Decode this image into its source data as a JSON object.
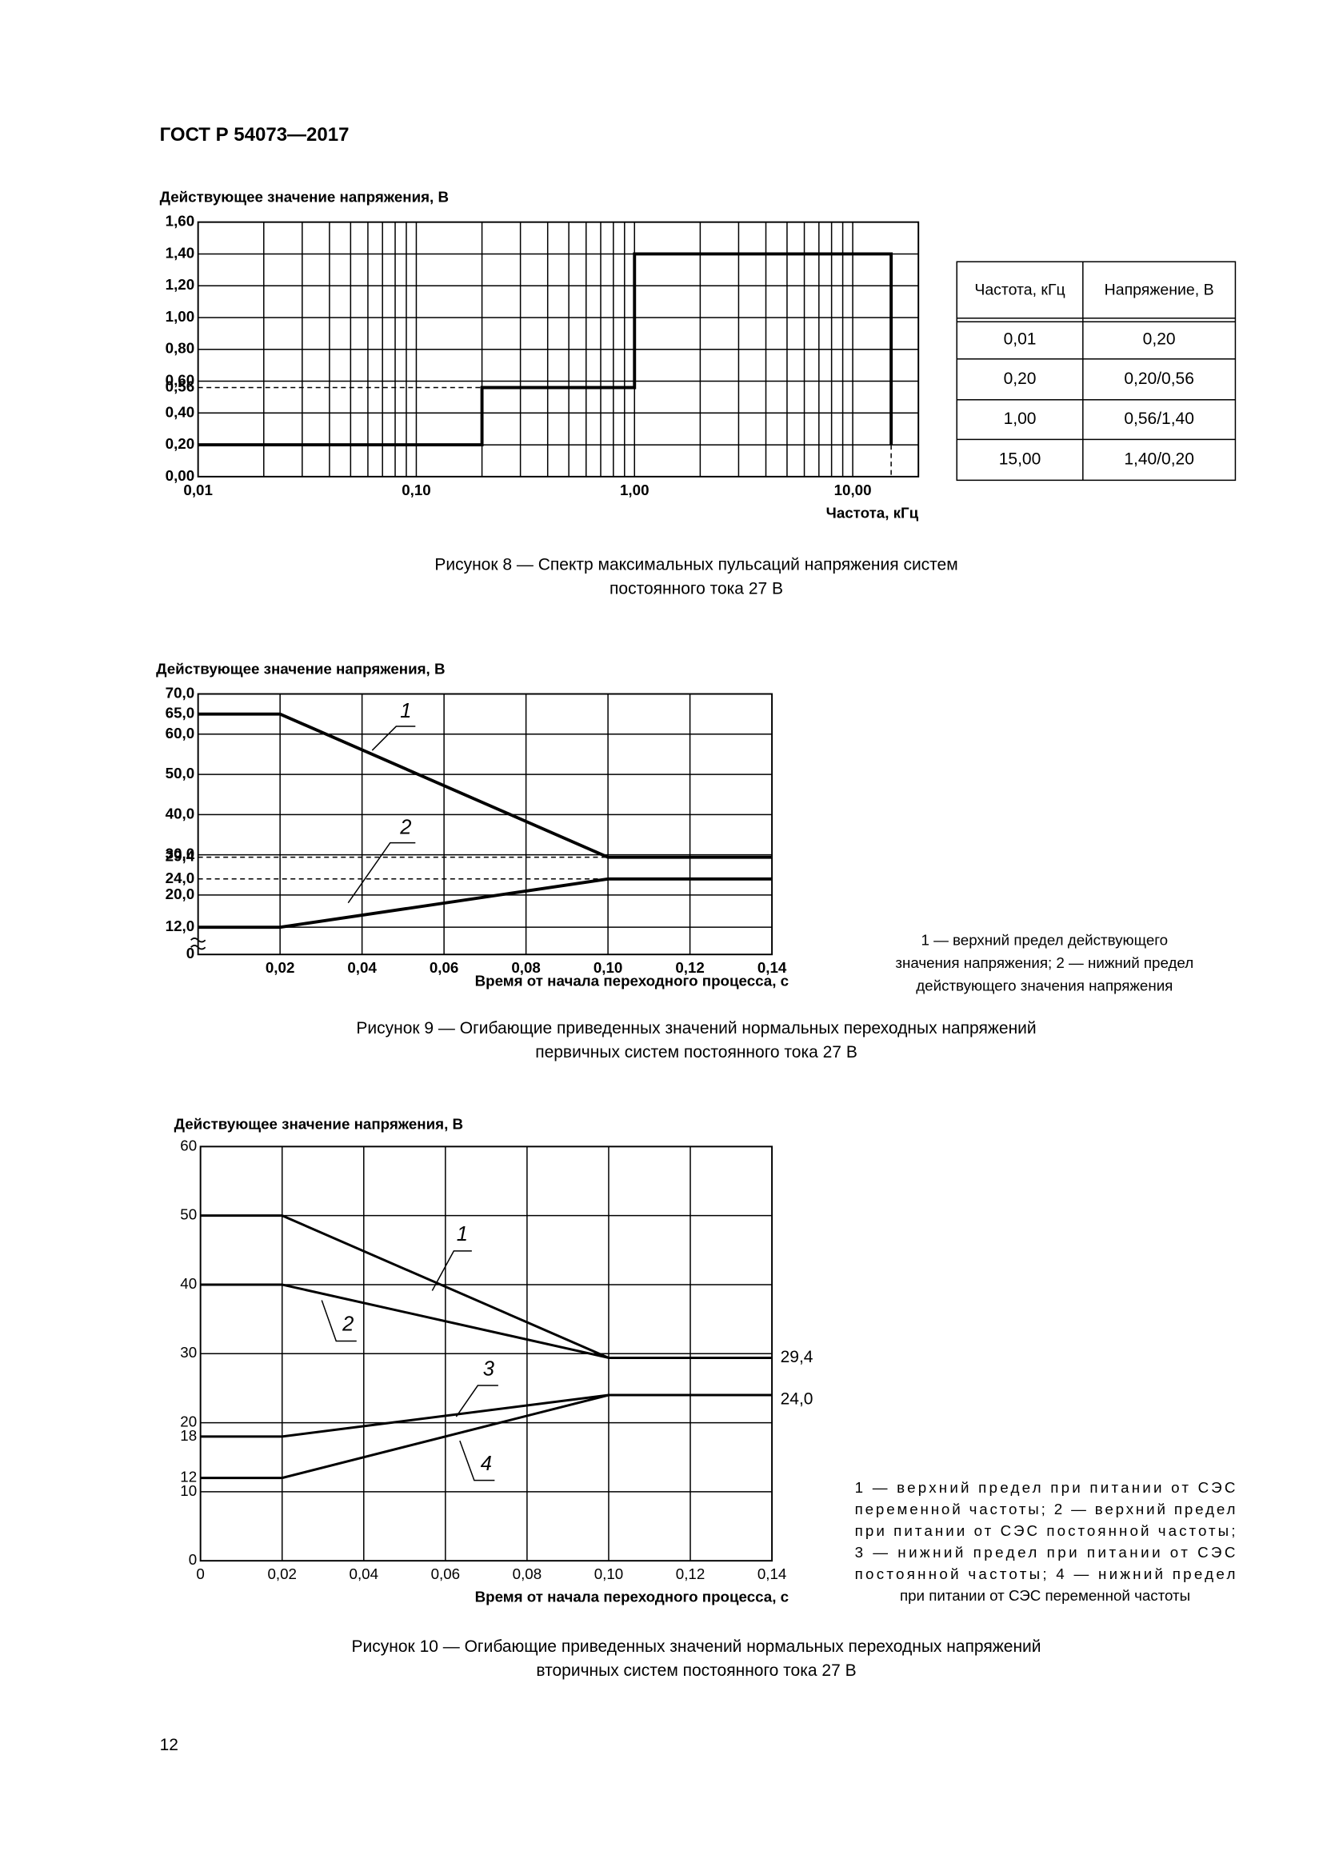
{
  "header": {
    "title": "ГОСТ Р 54073—2017"
  },
  "chart_data": [
    {
      "type": "line",
      "xscale": "log",
      "ylabel": "Действующее значение напряжения, В",
      "xlabel": "Частота, кГц",
      "caption": [
        "Рисунок 8 — Спектр максимальных пульсаций напряжения систем",
        "постоянного тока 27 В"
      ],
      "xlim": [
        0.01,
        20
      ],
      "ylim": [
        0,
        1.6
      ],
      "xticks": [
        {
          "value": 0.01,
          "label": "0,01"
        },
        {
          "value": 0.1,
          "label": "0,10"
        },
        {
          "value": 1,
          "label": "1,00"
        },
        {
          "value": 10,
          "label": "10,00"
        }
      ],
      "yticks": [
        {
          "value": 0,
          "label": "0,00"
        },
        {
          "value": 0.2,
          "label": "0,20"
        },
        {
          "value": 0.4,
          "label": "0,40"
        },
        {
          "value": 0.56,
          "label": "0,56"
        },
        {
          "value": 0.6,
          "label": "0,60"
        },
        {
          "value": 0.8,
          "label": "0,80"
        },
        {
          "value": 1,
          "label": "1,00"
        },
        {
          "value": 1.2,
          "label": "1,20"
        },
        {
          "value": 1.4,
          "label": "1,40"
        },
        {
          "value": 1.6,
          "label": "1,60"
        }
      ],
      "xgrid": [
        0.02,
        0.03,
        0.04,
        0.05,
        0.06,
        0.07,
        0.08,
        0.09,
        0.1,
        0.2,
        0.3,
        0.4,
        0.5,
        0.6,
        0.7,
        0.8,
        0.9,
        1,
        2,
        3,
        4,
        5,
        6,
        7,
        8,
        9,
        10,
        20
      ],
      "ygrid": [
        0.2,
        0.4,
        0.6,
        0.8,
        1,
        1.2,
        1.4
      ],
      "x": [
        0.01,
        0.2,
        0.2,
        1,
        1,
        15,
        15
      ],
      "series": [
        {
          "color": "#000000",
          "values": [
            0.2,
            0.2,
            0.56,
            0.56,
            1.4,
            1.4,
            0.2
          ]
        }
      ],
      "reference_lines": [
        {
          "x": [
            0.01,
            0.2
          ],
          "y": [
            0.56,
            0.56
          ]
        },
        {
          "x": [
            15,
            15
          ],
          "y": [
            0.2,
            0
          ]
        }
      ]
    },
    {
      "type": "line",
      "axis_break": [
        0,
        10
      ],
      "ylabel": "Действующее значение напряжения, В",
      "xlabel": "Время от начала переходного процесса, с",
      "caption": [
        "Рисунок 9 — Огибающие приведенных значений нормальных переходных напряжений",
        "первичных систем постоянного тока 27 В"
      ],
      "note": [
        "1 — верхний предел действующего",
        "значения напряжения; 2 — нижний предел",
        "действующего значения напряжения"
      ],
      "annotations": [
        "1",
        "2"
      ],
      "xlim": [
        0,
        0.14
      ],
      "ylim": [
        0,
        70
      ],
      "xticks": [
        {
          "value": 0.02,
          "label": "0,02"
        },
        {
          "value": 0.04,
          "label": "0,04"
        },
        {
          "value": 0.06,
          "label": "0,06"
        },
        {
          "value": 0.08,
          "label": "0,08"
        },
        {
          "value": 0.1,
          "label": "0,10"
        },
        {
          "value": 0.12,
          "label": "0,12"
        },
        {
          "value": 0.14,
          "label": "0,14"
        }
      ],
      "yticks": [
        0,
        {
          "value": 12,
          "label": "12,0"
        },
        {
          "value": 20,
          "label": "20,0"
        },
        {
          "value": 24,
          "label": "24,0"
        },
        {
          "value": 29.4,
          "label": "29,4"
        },
        {
          "value": 30,
          "label": "30,0"
        },
        {
          "value": 40,
          "label": "40,0"
        },
        {
          "value": 50,
          "label": "50,0"
        },
        {
          "value": 60,
          "label": "60,0"
        },
        {
          "value": 65,
          "label": "65,0"
        },
        {
          "value": 70,
          "label": "70,0"
        }
      ],
      "xgrid": [
        0.02,
        0.04,
        0.06,
        0.08,
        0.1,
        0.12
      ],
      "ygrid": [
        12,
        20,
        30,
        40,
        50,
        60
      ],
      "x": [
        0,
        0.02,
        0.1,
        0.14
      ],
      "series": [
        {
          "color": "#000000",
          "values": [
            65,
            65,
            29.4,
            29.4
          ]
        },
        {
          "color": "#000000",
          "values": [
            12,
            12,
            24,
            24
          ]
        }
      ],
      "reference_lines": [
        {
          "x": [
            0,
            0.1
          ],
          "y": [
            29.4,
            29.4
          ]
        },
        {
          "x": [
            0,
            0.1
          ],
          "y": [
            24,
            24
          ]
        }
      ]
    },
    {
      "type": "line",
      "ylabel": "Действующее значение напряжения, В",
      "xlabel": "Время от начала переходного процесса, с",
      "caption": [
        "Рисунок 10 — Огибающие приведенных значений нормальных переходных напряжений",
        "вторичных систем постоянного тока 27 В"
      ],
      "note": [
        "1 — верхний предел при питании от СЭС",
        "переменной частоты; 2 — верхний предел",
        "при питании от СЭС постоянной частоты;",
        "3 — нижний предел при питании от СЭС",
        "постоянной частоты; 4 — нижний предел",
        "при питании от СЭС переменной частоты"
      ],
      "annotations": [
        "1",
        "2",
        "3",
        "4",
        "29,4",
        "24,0"
      ],
      "xlim": [
        0,
        0.14
      ],
      "ylim": [
        0,
        60
      ],
      "xticks": [
        0,
        {
          "value": 0.02,
          "label": "0,02"
        },
        {
          "value": 0.04,
          "label": "0,04"
        },
        {
          "value": 0.06,
          "label": "0,06"
        },
        {
          "value": 0.08,
          "label": "0,08"
        },
        {
          "value": 0.1,
          "label": "0,10"
        },
        {
          "value": 0.12,
          "label": "0,12"
        },
        {
          "value": 0.14,
          "label": "0,14"
        }
      ],
      "yticks": [
        0,
        10,
        12,
        18,
        20,
        30,
        40,
        50,
        60
      ],
      "xgrid": [
        0.02,
        0.04,
        0.06,
        0.08,
        0.1,
        0.12
      ],
      "ygrid": [
        10,
        20,
        30,
        40,
        50
      ],
      "x": [
        0,
        0.02,
        0.1,
        0.14
      ],
      "series": [
        {
          "color": "#000000",
          "values": [
            50,
            50,
            29.4,
            29.4
          ]
        },
        {
          "color": "#000000",
          "values": [
            40,
            40,
            29.4,
            null
          ]
        },
        {
          "color": "#000000",
          "values": [
            18,
            18,
            24,
            24
          ]
        },
        {
          "color": "#000000",
          "values": [
            12,
            12,
            24,
            null
          ]
        }
      ]
    }
  ],
  "table": {
    "columns": [
      "Частота, кГц",
      "Напряжение, В"
    ],
    "rows": [
      [
        "0,01",
        "0,20"
      ],
      [
        "0,20",
        "0,20/0,56"
      ],
      [
        "1,00",
        "0,56/1,40"
      ],
      [
        "15,00",
        "1,40/0,20"
      ]
    ]
  },
  "page_number": "12"
}
